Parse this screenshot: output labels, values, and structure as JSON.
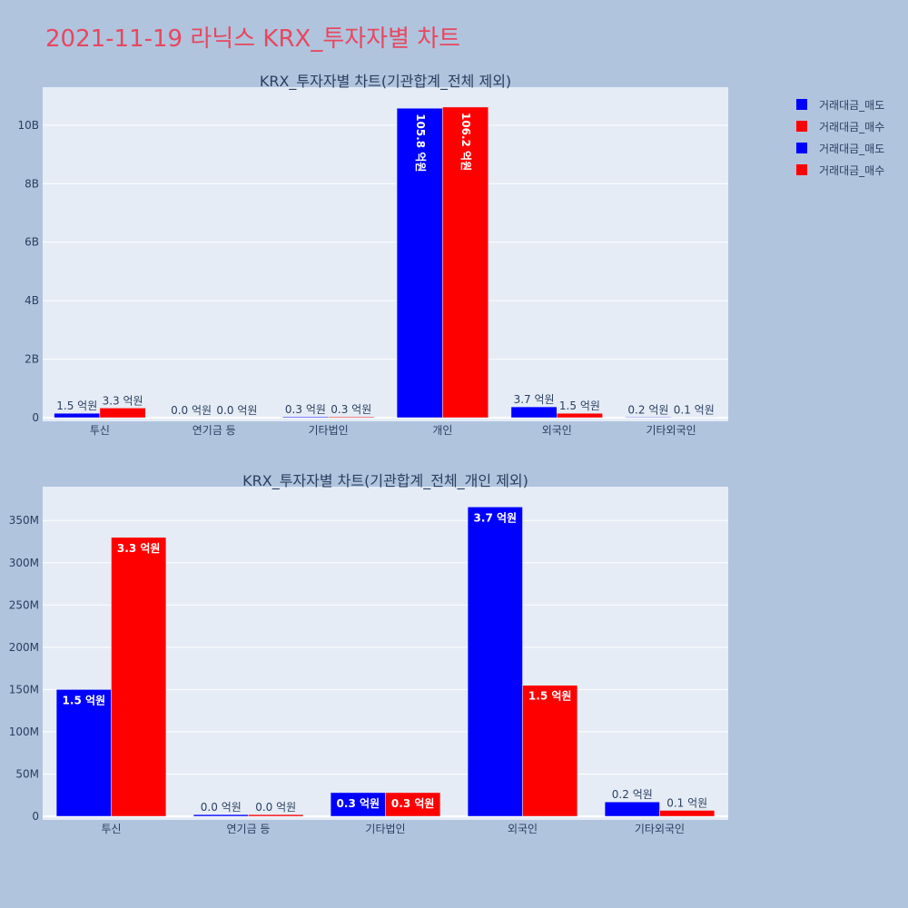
{
  "page": {
    "title": "2021-11-19 라닉스 KRX_투자자별 차트"
  },
  "legend": {
    "entries": [
      {
        "label": "거래대금_매도",
        "color": "#0000ff"
      },
      {
        "label": "거래대금_매수",
        "color": "#ff0000"
      },
      {
        "label": "거래대금_매도",
        "color": "#0000ff"
      },
      {
        "label": "거래대금_매수",
        "color": "#ff0000"
      }
    ]
  },
  "chart_data": [
    {
      "type": "bar",
      "title": "KRX_투자자별 차트(기관합계_전체 제외)",
      "categories": [
        "투신",
        "연기금 등",
        "기타법인",
        "개인",
        "외국인",
        "기타외국인"
      ],
      "series": [
        {
          "name": "거래대금_매도",
          "color": "#0000ff",
          "values": [
            150000000,
            0,
            30000000,
            10580000000,
            370000000,
            20000000
          ],
          "labels": [
            "1.5 억원",
            "0.0 억원",
            "0.3 억원",
            "105.8 억원",
            "3.7 억원",
            "0.2 억원"
          ]
        },
        {
          "name": "거래대금_매수",
          "color": "#ff0000",
          "values": [
            330000000,
            0,
            30000000,
            10620000000,
            150000000,
            10000000
          ],
          "labels": [
            "3.3 억원",
            "0.0 억원",
            "0.3 억원",
            "106.2 억원",
            "1.5 억원",
            "0.1 억원"
          ]
        }
      ],
      "ylim": [
        0,
        11300000000
      ],
      "yticks": [
        0,
        2000000000,
        4000000000,
        6000000000,
        8000000000,
        10000000000
      ],
      "ytick_labels": [
        "0",
        "2B",
        "4B",
        "6B",
        "8B",
        "10B"
      ],
      "grid": true
    },
    {
      "type": "bar",
      "title": "KRX_투자자별 차트(기관합계_전체_개인 제외)",
      "categories": [
        "투신",
        "연기금 등",
        "기타법인",
        "외국인",
        "기타외국인"
      ],
      "series": [
        {
          "name": "거래대금_매도",
          "color": "#0000ff",
          "values": [
            150000000,
            2000000,
            28000000,
            366000000,
            17000000
          ],
          "labels": [
            "1.5 억원",
            "0.0 억원",
            "0.3 억원",
            "3.7 억원",
            "0.2 억원"
          ]
        },
        {
          "name": "거래대금_매수",
          "color": "#ff0000",
          "values": [
            330000000,
            2000000,
            28000000,
            155000000,
            7000000
          ],
          "labels": [
            "3.3 억원",
            "0.0 억원",
            "0.3 억원",
            "1.5 억원",
            "0.1 억원"
          ]
        }
      ],
      "ylim": [
        0,
        390000000
      ],
      "yticks": [
        0,
        50000000,
        100000000,
        150000000,
        200000000,
        250000000,
        300000000,
        350000000
      ],
      "ytick_labels": [
        "0",
        "50M",
        "100M",
        "150M",
        "200M",
        "250M",
        "300M",
        "350M"
      ],
      "grid": true
    }
  ]
}
